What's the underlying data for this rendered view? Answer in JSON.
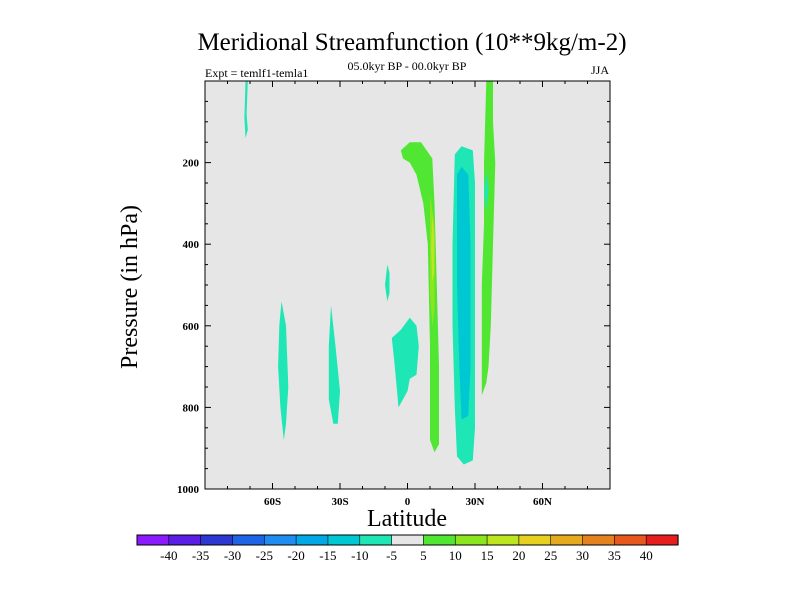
{
  "chart_data": {
    "type": "contour",
    "title": "Meridional Streamfunction (10**9kg/m-2)",
    "left_string": "Expt = temlf1-temla1",
    "center_string": "05.0kyr BP - 00.0kyr BP",
    "right_string": "JJA",
    "xlabel": "Latitude",
    "ylabel": "Pressure (in hPa)",
    "xlim": [
      -90,
      90
    ],
    "ylim": [
      0,
      1000
    ],
    "x_ticks": [
      {
        "value": -60,
        "label": "60S"
      },
      {
        "value": -30,
        "label": "30S"
      },
      {
        "value": 0,
        "label": "0"
      },
      {
        "value": 30,
        "label": "30N"
      },
      {
        "value": 60,
        "label": "60N"
      }
    ],
    "y_ticks": [
      {
        "value": 200,
        "label": "200"
      },
      {
        "value": 400,
        "label": "400"
      },
      {
        "value": 600,
        "label": "600"
      },
      {
        "value": 800,
        "label": "800"
      },
      {
        "value": 1000,
        "label": "1000"
      }
    ],
    "background_color": "#e6e6e6",
    "colorbar": {
      "labels": [
        "-40",
        "-35",
        "-30",
        "-25",
        "-20",
        "-15",
        "-10",
        "-5",
        "5",
        "10",
        "15",
        "20",
        "25",
        "30",
        "35",
        "40"
      ],
      "colors": [
        "#8c1aff",
        "#5a1ee6",
        "#2d37d2",
        "#1e64e6",
        "#1e8cf0",
        "#00a8e6",
        "#00c8d2",
        "#1ee6b4",
        "#e6e6e6",
        "#50e632",
        "#8ce61e",
        "#bee61e",
        "#e6d21e",
        "#e6aa1e",
        "#e6821e",
        "#e6581e",
        "#e61e1e"
      ]
    },
    "regions": [
      {
        "level": "-5",
        "color": "#1ee6b4",
        "polygon": [
          [
            -72,
            0
          ],
          [
            -71,
            0
          ],
          [
            -71.5,
            80
          ],
          [
            -71,
            120
          ],
          [
            -72,
            140
          ],
          [
            -72.5,
            90
          ]
        ]
      },
      {
        "level": "-5",
        "color": "#1ee6b4",
        "polygon": [
          [
            -56,
            540
          ],
          [
            -54,
            600
          ],
          [
            -53,
            750
          ],
          [
            -54,
            840
          ],
          [
            -55,
            880
          ],
          [
            -56.5,
            800
          ],
          [
            -57.5,
            700
          ],
          [
            -57,
            600
          ]
        ]
      },
      {
        "level": "-5",
        "color": "#1ee6b4",
        "polygon": [
          [
            -34,
            550
          ],
          [
            -32,
            650
          ],
          [
            -30,
            760
          ],
          [
            -31,
            840
          ],
          [
            -33,
            840
          ],
          [
            -35,
            780
          ],
          [
            -35,
            650
          ]
        ]
      },
      {
        "level": "-5",
        "color": "#1ee6b4",
        "polygon": [
          [
            -9,
            450
          ],
          [
            -8,
            470
          ],
          [
            -8,
            520
          ],
          [
            -9,
            540
          ],
          [
            -10,
            500
          ]
        ]
      },
      {
        "level": "-5",
        "color": "#1ee6b4",
        "polygon": [
          [
            -7,
            630
          ],
          [
            -3,
            610
          ],
          [
            1,
            580
          ],
          [
            4,
            600
          ],
          [
            5,
            650
          ],
          [
            4,
            720
          ],
          [
            1,
            730
          ],
          [
            0,
            760
          ],
          [
            -3,
            790
          ],
          [
            -4,
            800
          ],
          [
            -5,
            740
          ],
          [
            -6,
            680
          ]
        ]
      },
      {
        "level": "5",
        "color": "#50e632",
        "polygon": [
          [
            -3,
            170
          ],
          [
            1,
            150
          ],
          [
            6,
            150
          ],
          [
            11,
            190
          ],
          [
            12,
            300
          ],
          [
            13,
            500
          ],
          [
            14,
            700
          ],
          [
            14,
            890
          ],
          [
            12,
            910
          ],
          [
            10,
            880
          ],
          [
            10,
            650
          ],
          [
            9,
            400
          ],
          [
            7,
            300
          ],
          [
            4,
            230
          ],
          [
            1,
            200
          ],
          [
            -2,
            190
          ]
        ]
      },
      {
        "level": "10",
        "color": "#8ce61e",
        "polygon": [
          [
            10,
            280
          ],
          [
            12,
            350
          ],
          [
            12,
            480
          ],
          [
            12,
            560
          ],
          [
            11,
            600
          ],
          [
            10,
            520
          ],
          [
            10,
            380
          ]
        ]
      },
      {
        "level": "15",
        "color": "#bee61e",
        "polygon": [
          [
            11,
            330
          ],
          [
            12,
            380
          ],
          [
            12,
            470
          ],
          [
            11,
            490
          ],
          [
            10.5,
            410
          ]
        ]
      },
      {
        "level": "-5",
        "color": "#1ee6b4",
        "polygon": [
          [
            21,
            180
          ],
          [
            24,
            160
          ],
          [
            29,
            170
          ],
          [
            30,
            250
          ],
          [
            30,
            500
          ],
          [
            30,
            700
          ],
          [
            30,
            850
          ],
          [
            29,
            930
          ],
          [
            25,
            940
          ],
          [
            22,
            920
          ],
          [
            21,
            800
          ],
          [
            20,
            600
          ],
          [
            20,
            400
          ]
        ]
      },
      {
        "level": "-10",
        "color": "#00c8d2",
        "polygon": [
          [
            22,
            230
          ],
          [
            24,
            210
          ],
          [
            27,
            230
          ],
          [
            28,
            400
          ],
          [
            28,
            700
          ],
          [
            27,
            820
          ],
          [
            24,
            830
          ],
          [
            23,
            700
          ],
          [
            22,
            500
          ]
        ]
      },
      {
        "level": "5",
        "color": "#50e632",
        "polygon": [
          [
            35,
            0
          ],
          [
            38,
            0
          ],
          [
            38,
            100
          ],
          [
            39,
            200
          ],
          [
            38,
            400
          ],
          [
            37,
            600
          ],
          [
            36,
            700
          ],
          [
            35,
            740
          ],
          [
            33,
            770
          ],
          [
            33,
            650
          ],
          [
            33,
            500
          ],
          [
            34,
            350
          ],
          [
            34,
            200
          ]
        ]
      },
      {
        "level": "-5",
        "color": "#1ee6b4",
        "polygon": [
          [
            35,
            220
          ],
          [
            36,
            260
          ],
          [
            35,
            320
          ],
          [
            34,
            280
          ]
        ]
      }
    ]
  }
}
